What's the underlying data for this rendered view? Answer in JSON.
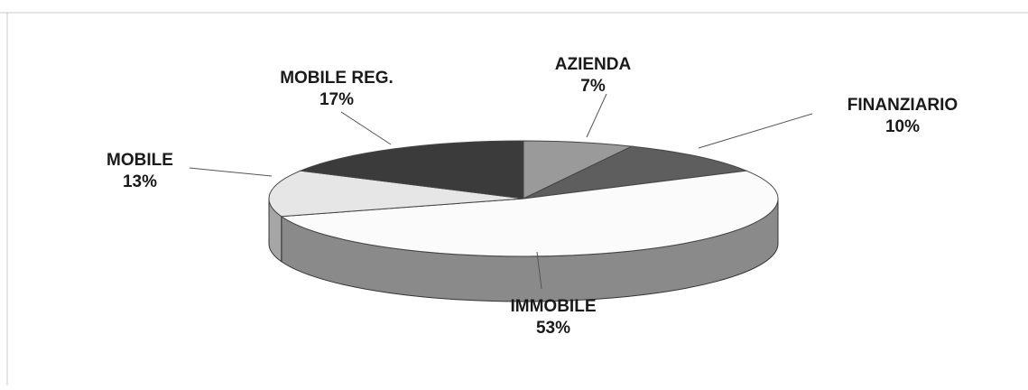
{
  "chart_data": {
    "type": "pie",
    "style": "3d",
    "title": "",
    "slices": [
      {
        "label": "AZIENDA",
        "value": 7,
        "pct_label": "7%",
        "color": "#9a9a9a"
      },
      {
        "label": "FINANZIARIO",
        "value": 10,
        "pct_label": "10%",
        "color": "#5e5e5e"
      },
      {
        "label": "IMMOBILE",
        "value": 53,
        "pct_label": "53%",
        "color": "#fbfbfb"
      },
      {
        "label": "MOBILE",
        "value": 13,
        "pct_label": "13%",
        "color": "#e6e6e6"
      },
      {
        "label": "MOBILE REG.",
        "value": 17,
        "pct_label": "17%",
        "color": "#3b3b3b"
      }
    ],
    "legend": "none",
    "grid": false
  }
}
